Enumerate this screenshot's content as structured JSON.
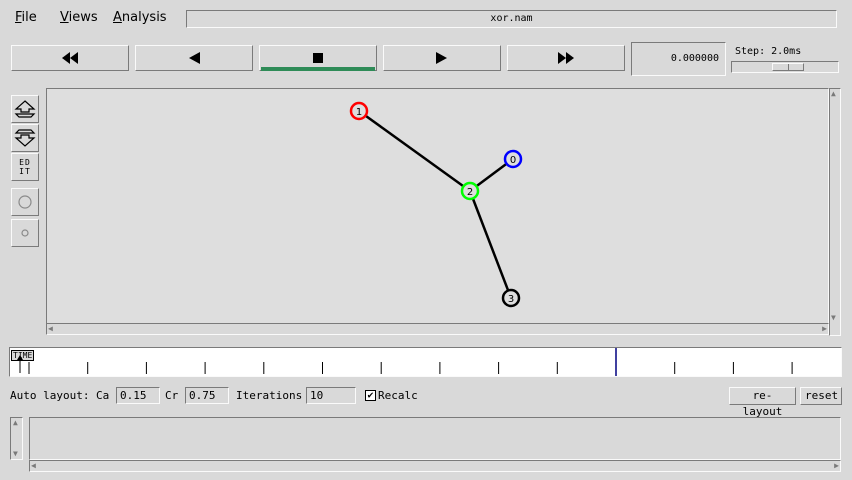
{
  "menu": {
    "file": {
      "mnemonic": "F",
      "rest": "ile"
    },
    "views": {
      "mnemonic": "V",
      "rest": "iews"
    },
    "analysis": {
      "mnemonic": "A",
      "rest": "nalysis"
    }
  },
  "window_title": "xor.nam",
  "transport": {
    "buttons": [
      "fast-rewind",
      "play-backward",
      "stop",
      "play-forward",
      "fast-forward"
    ],
    "active": "stop",
    "active_color": "#2e8b57"
  },
  "time_readout": "0.000000",
  "step": {
    "label": "Step: 2.0ms"
  },
  "tools": {
    "edit_label_top": "ED",
    "edit_label_bottom": "IT"
  },
  "network": {
    "nodes": [
      {
        "id": "1",
        "color": "#ff0000"
      },
      {
        "id": "0",
        "color": "#0000ff"
      },
      {
        "id": "2",
        "color": "#00ff00"
      },
      {
        "id": "3",
        "color": "#000000"
      }
    ],
    "links": [
      [
        "1",
        "2"
      ],
      [
        "0",
        "2"
      ],
      [
        "2",
        "3"
      ]
    ]
  },
  "timeline": {
    "label": "TIME",
    "ticks": 14,
    "marker_color": "#000080"
  },
  "auto_layout": {
    "label": "Auto layout:",
    "ca_label": "Ca",
    "ca_value": "0.15",
    "cr_label": "Cr",
    "cr_value": "0.75",
    "iterations_label": "Iterations",
    "iterations_value": "10",
    "recalc_label": "Recalc",
    "recalc_checked": true,
    "relayout_label": "re-layout",
    "reset_label": "reset"
  }
}
